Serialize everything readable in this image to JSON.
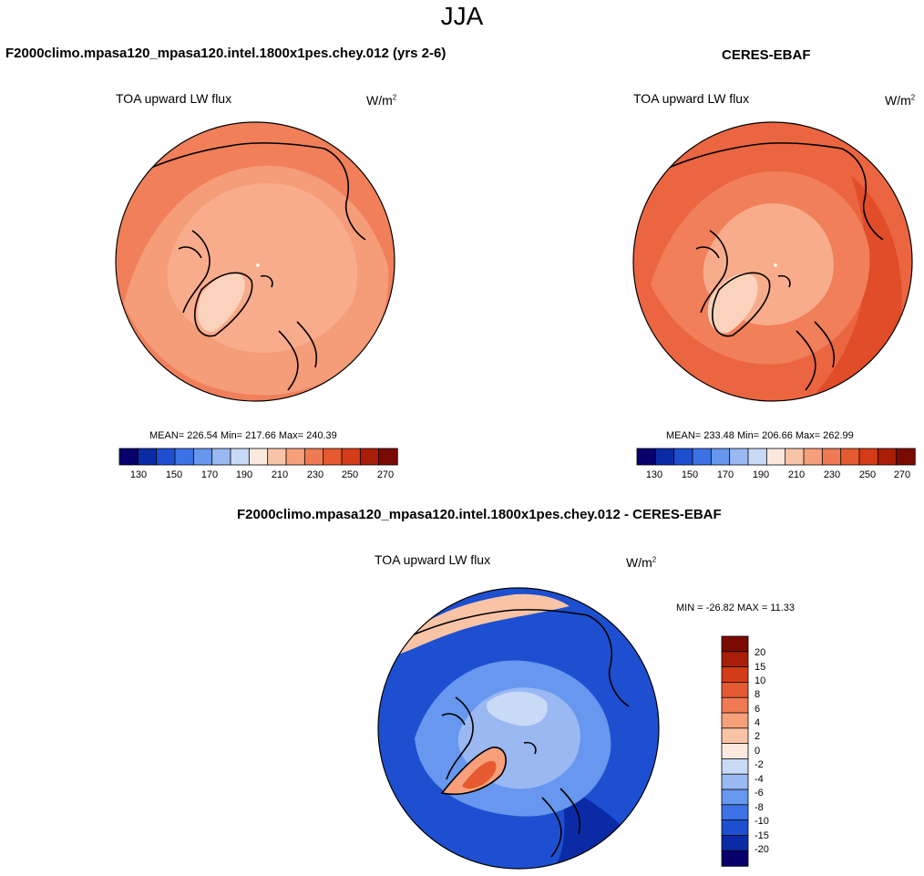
{
  "figure_title": "JJA",
  "colors": {
    "cbar_main": [
      "#08006d",
      "#0b2aa6",
      "#1d4fd0",
      "#3d72e6",
      "#6797ee",
      "#9ab8f2",
      "#c9daf6",
      "#fbe9de",
      "#f9c4a6",
      "#f5a07b",
      "#ef7a54",
      "#e55a31",
      "#d43c17",
      "#a81e08",
      "#7b0a02"
    ],
    "cbar_diff": [
      "#08006d",
      "#0b2aa6",
      "#1d4fd0",
      "#3d72e6",
      "#6797ee",
      "#9ab8f2",
      "#c9daf6",
      "#fbe9de",
      "#f9c4a6",
      "#f5a07b",
      "#ef7a54",
      "#e55a31",
      "#d43c17",
      "#a81e08",
      "#7b0a02"
    ]
  },
  "panels": {
    "test": {
      "title": "F2000climo.mpasa120_mpasa120.intel.1800x1pes.chey.012 (yrs 2-6)",
      "variable": "TOA upward LW flux",
      "units_base": "W/m",
      "units_exp": "2",
      "stats": "MEAN= 226.54  Min= 217.66  Max= 240.39",
      "colorbar_ticks": [
        "130",
        "150",
        "170",
        "190",
        "210",
        "230",
        "250",
        "270"
      ]
    },
    "ref": {
      "title": "CERES-EBAF",
      "variable": "TOA upward LW flux",
      "units_base": "W/m",
      "units_exp": "2",
      "stats": "MEAN= 233.48  Min= 206.66  Max= 262.99",
      "colorbar_ticks": [
        "130",
        "150",
        "170",
        "190",
        "210",
        "230",
        "250",
        "270"
      ]
    },
    "diff": {
      "title": "F2000climo.mpasa120_mpasa120.intel.1800x1pes.chey.012 - CERES-EBAF",
      "variable": "TOA upward LW flux",
      "units_base": "W/m",
      "units_exp": "2",
      "stats": "MIN = -26.82 MAX =  11.33",
      "colorbar_ticks": [
        "20",
        "15",
        "10",
        "8",
        "6",
        "4",
        "2",
        "0",
        "-2",
        "-4",
        "-6",
        "-8",
        "-10",
        "-15",
        "-20"
      ]
    }
  },
  "chart_data": [
    {
      "type": "heatmap",
      "title": "TOA upward LW flux",
      "subtitle": "F2000climo.mpasa120_mpasa120.intel.1800x1pes.chey.012 (yrs 2-6)",
      "projection": "north polar stereographic",
      "units": "W/m2",
      "mean": 226.54,
      "min": 217.66,
      "max": 240.39,
      "levels": [
        130,
        140,
        150,
        160,
        170,
        180,
        190,
        200,
        210,
        220,
        230,
        240,
        250,
        260,
        270
      ]
    },
    {
      "type": "heatmap",
      "title": "TOA upward LW flux",
      "subtitle": "CERES-EBAF",
      "projection": "north polar stereographic",
      "units": "W/m2",
      "mean": 233.48,
      "min": 206.66,
      "max": 262.99,
      "levels": [
        130,
        140,
        150,
        160,
        170,
        180,
        190,
        200,
        210,
        220,
        230,
        240,
        250,
        260,
        270
      ]
    },
    {
      "type": "heatmap",
      "title": "TOA upward LW flux",
      "subtitle": "F2000climo.mpasa120_mpasa120.intel.1800x1pes.chey.012 - CERES-EBAF",
      "projection": "north polar stereographic",
      "units": "W/m2",
      "min": -26.82,
      "max": 11.33,
      "levels": [
        -20,
        -15,
        -10,
        -8,
        -6,
        -4,
        -2,
        0,
        2,
        4,
        6,
        8,
        10,
        15,
        20
      ]
    }
  ]
}
